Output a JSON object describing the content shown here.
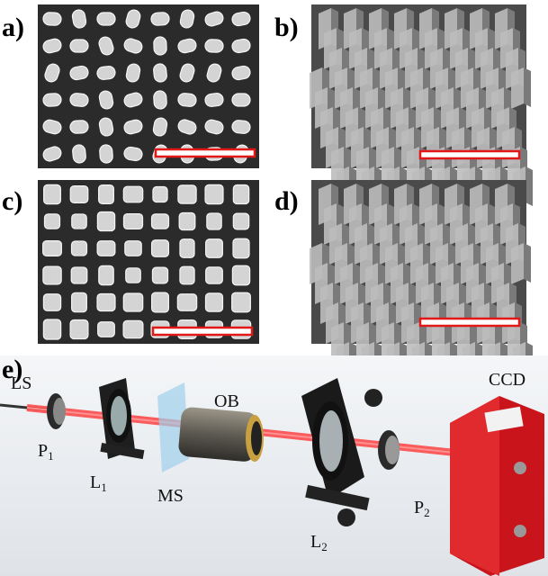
{
  "panels": {
    "a": "a)",
    "b": "b)",
    "c": "c)",
    "d": "d)",
    "e": "e)"
  },
  "setup": {
    "ls": "LS",
    "p1": {
      "main": "P",
      "sub": "1"
    },
    "l1": {
      "main": "L",
      "sub": "1"
    },
    "ms": "MS",
    "ob": "OB",
    "l2": {
      "main": "L",
      "sub": "2"
    },
    "p2": {
      "main": "P",
      "sub": "2"
    },
    "ccd": "CCD"
  }
}
